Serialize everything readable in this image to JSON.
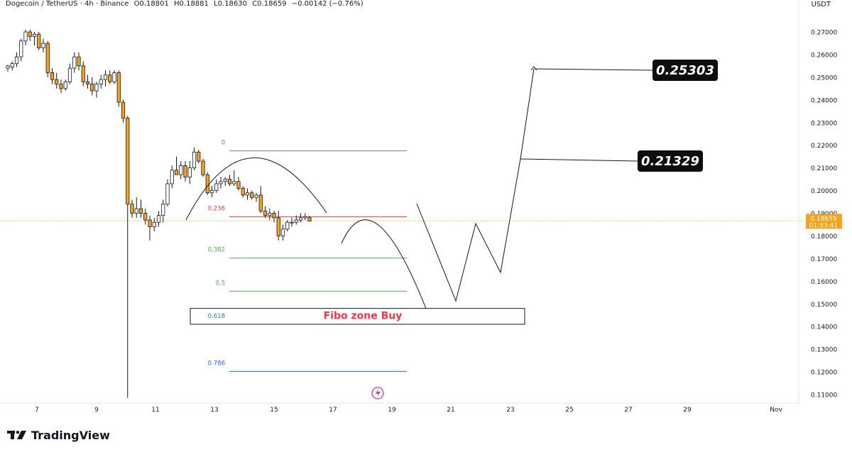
{
  "header": {
    "symbol": "Dogecoin / TetherUS · 4h · Binance",
    "open": "O0.18801",
    "high": "H0.18881",
    "low": "L0.18630",
    "close": "C0.18659",
    "change": "−0.00142 (−0.76%)"
  },
  "currency": "USDT",
  "brand": "TradingView",
  "colors": {
    "up": "#ffffff",
    "down": "#f7a21b",
    "wick": "#131722",
    "price_line": "#f7a21b",
    "fib_0": "#787b86",
    "fib_236": "#f23645",
    "fib_382": "#4caf50",
    "fib_5": "#4caf50",
    "fib_618": "#089981",
    "fib_786": "#2962ff",
    "zone_text": "#f23645"
  },
  "chart_data": {
    "type": "candlestick",
    "title": "",
    "x_axis": {
      "type": "date",
      "ticks": [
        "7",
        "9",
        "11",
        "13",
        "15",
        "17",
        "19",
        "21",
        "23",
        "25",
        "27",
        "29",
        "Nov"
      ]
    },
    "y_axis": {
      "range": [
        0.105,
        0.275
      ],
      "ticks": [
        "0.27000",
        "0.26000",
        "0.25000",
        "0.24000",
        "0.23000",
        "0.22000",
        "0.21000",
        "0.20000",
        "0.19000",
        "0.18000",
        "0.17000",
        "0.16000",
        "0.15000",
        "0.14000",
        "0.13000",
        "0.12000",
        "0.11000"
      ],
      "tick_values": [
        0.27,
        0.26,
        0.25,
        0.24,
        0.23,
        0.22,
        0.21,
        0.2,
        0.19,
        0.18,
        0.17,
        0.16,
        0.15,
        0.14,
        0.13,
        0.12,
        0.11
      ]
    },
    "last_price": {
      "value": 0.18659,
      "label": "0.18659",
      "countdown": "01:53:41"
    },
    "candles": [
      {
        "o": 0.254,
        "h": 0.2555,
        "l": 0.2525,
        "c": 0.255
      },
      {
        "o": 0.2545,
        "h": 0.257,
        "l": 0.253,
        "c": 0.256
      },
      {
        "o": 0.256,
        "h": 0.261,
        "l": 0.2545,
        "c": 0.259
      },
      {
        "o": 0.259,
        "h": 0.267,
        "l": 0.257,
        "c": 0.266
      },
      {
        "o": 0.266,
        "h": 0.271,
        "l": 0.264,
        "c": 0.27
      },
      {
        "o": 0.27,
        "h": 0.271,
        "l": 0.266,
        "c": 0.268
      },
      {
        "o": 0.268,
        "h": 0.27,
        "l": 0.264,
        "c": 0.269
      },
      {
        "o": 0.269,
        "h": 0.27,
        "l": 0.262,
        "c": 0.263
      },
      {
        "o": 0.263,
        "h": 0.267,
        "l": 0.261,
        "c": 0.265
      },
      {
        "o": 0.265,
        "h": 0.266,
        "l": 0.25,
        "c": 0.252
      },
      {
        "o": 0.252,
        "h": 0.254,
        "l": 0.247,
        "c": 0.249
      },
      {
        "o": 0.249,
        "h": 0.252,
        "l": 0.245,
        "c": 0.247
      },
      {
        "o": 0.247,
        "h": 0.249,
        "l": 0.243,
        "c": 0.245
      },
      {
        "o": 0.245,
        "h": 0.249,
        "l": 0.244,
        "c": 0.248
      },
      {
        "o": 0.248,
        "h": 0.256,
        "l": 0.247,
        "c": 0.254
      },
      {
        "o": 0.254,
        "h": 0.261,
        "l": 0.252,
        "c": 0.259
      },
      {
        "o": 0.259,
        "h": 0.261,
        "l": 0.253,
        "c": 0.255
      },
      {
        "o": 0.255,
        "h": 0.257,
        "l": 0.246,
        "c": 0.248
      },
      {
        "o": 0.248,
        "h": 0.251,
        "l": 0.245,
        "c": 0.247
      },
      {
        "o": 0.247,
        "h": 0.25,
        "l": 0.242,
        "c": 0.244
      },
      {
        "o": 0.244,
        "h": 0.248,
        "l": 0.241,
        "c": 0.247
      },
      {
        "o": 0.247,
        "h": 0.251,
        "l": 0.245,
        "c": 0.249
      },
      {
        "o": 0.249,
        "h": 0.253,
        "l": 0.246,
        "c": 0.251
      },
      {
        "o": 0.251,
        "h": 0.253,
        "l": 0.247,
        "c": 0.248
      },
      {
        "o": 0.248,
        "h": 0.253,
        "l": 0.247,
        "c": 0.252
      },
      {
        "o": 0.252,
        "h": 0.253,
        "l": 0.237,
        "c": 0.239
      },
      {
        "o": 0.239,
        "h": 0.24,
        "l": 0.23,
        "c": 0.232
      },
      {
        "o": 0.232,
        "h": 0.233,
        "l": 0.1085,
        "c": 0.194
      },
      {
        "o": 0.194,
        "h": 0.196,
        "l": 0.188,
        "c": 0.19
      },
      {
        "o": 0.19,
        "h": 0.197,
        "l": 0.188,
        "c": 0.192
      },
      {
        "o": 0.192,
        "h": 0.196,
        "l": 0.188,
        "c": 0.19
      },
      {
        "o": 0.19,
        "h": 0.192,
        "l": 0.185,
        "c": 0.187
      },
      {
        "o": 0.187,
        "h": 0.189,
        "l": 0.178,
        "c": 0.184
      },
      {
        "o": 0.184,
        "h": 0.188,
        "l": 0.182,
        "c": 0.186
      },
      {
        "o": 0.186,
        "h": 0.191,
        "l": 0.184,
        "c": 0.189
      },
      {
        "o": 0.189,
        "h": 0.196,
        "l": 0.186,
        "c": 0.194
      },
      {
        "o": 0.194,
        "h": 0.205,
        "l": 0.193,
        "c": 0.203
      },
      {
        "o": 0.203,
        "h": 0.211,
        "l": 0.201,
        "c": 0.209
      },
      {
        "o": 0.209,
        "h": 0.215,
        "l": 0.207,
        "c": 0.207
      },
      {
        "o": 0.207,
        "h": 0.213,
        "l": 0.205,
        "c": 0.211
      },
      {
        "o": 0.211,
        "h": 0.213,
        "l": 0.204,
        "c": 0.206
      },
      {
        "o": 0.206,
        "h": 0.213,
        "l": 0.203,
        "c": 0.21
      },
      {
        "o": 0.21,
        "h": 0.219,
        "l": 0.209,
        "c": 0.217
      },
      {
        "o": 0.217,
        "h": 0.218,
        "l": 0.212,
        "c": 0.213
      },
      {
        "o": 0.213,
        "h": 0.214,
        "l": 0.206,
        "c": 0.207
      },
      {
        "o": 0.207,
        "h": 0.208,
        "l": 0.198,
        "c": 0.199
      },
      {
        "o": 0.199,
        "h": 0.202,
        "l": 0.197,
        "c": 0.2
      },
      {
        "o": 0.2,
        "h": 0.205,
        "l": 0.199,
        "c": 0.203
      },
      {
        "o": 0.203,
        "h": 0.206,
        "l": 0.201,
        "c": 0.204
      },
      {
        "o": 0.204,
        "h": 0.206,
        "l": 0.202,
        "c": 0.205
      },
      {
        "o": 0.205,
        "h": 0.207,
        "l": 0.202,
        "c": 0.203
      },
      {
        "o": 0.203,
        "h": 0.209,
        "l": 0.202,
        "c": 0.204
      },
      {
        "o": 0.204,
        "h": 0.206,
        "l": 0.2,
        "c": 0.201
      },
      {
        "o": 0.201,
        "h": 0.202,
        "l": 0.197,
        "c": 0.198
      },
      {
        "o": 0.198,
        "h": 0.201,
        "l": 0.196,
        "c": 0.199
      },
      {
        "o": 0.199,
        "h": 0.2,
        "l": 0.196,
        "c": 0.197
      },
      {
        "o": 0.197,
        "h": 0.199,
        "l": 0.195,
        "c": 0.198
      },
      {
        "o": 0.198,
        "h": 0.202,
        "l": 0.19,
        "c": 0.191
      },
      {
        "o": 0.191,
        "h": 0.193,
        "l": 0.188,
        "c": 0.189
      },
      {
        "o": 0.189,
        "h": 0.192,
        "l": 0.187,
        "c": 0.19
      },
      {
        "o": 0.19,
        "h": 0.191,
        "l": 0.186,
        "c": 0.188
      },
      {
        "o": 0.188,
        "h": 0.191,
        "l": 0.178,
        "c": 0.18
      },
      {
        "o": 0.18,
        "h": 0.185,
        "l": 0.178,
        "c": 0.183
      },
      {
        "o": 0.183,
        "h": 0.187,
        "l": 0.182,
        "c": 0.186
      },
      {
        "o": 0.186,
        "h": 0.188,
        "l": 0.184,
        "c": 0.186
      },
      {
        "o": 0.186,
        "h": 0.189,
        "l": 0.185,
        "c": 0.187
      },
      {
        "o": 0.187,
        "h": 0.19,
        "l": 0.186,
        "c": 0.188
      },
      {
        "o": 0.188,
        "h": 0.19,
        "l": 0.187,
        "c": 0.1885
      },
      {
        "o": 0.18801,
        "h": 0.18881,
        "l": 0.1863,
        "c": 0.18659
      }
    ],
    "fibonacci": [
      {
        "ratio": "0",
        "price": 0.2175
      },
      {
        "ratio": "0.236",
        "price": 0.1884
      },
      {
        "ratio": "0.382",
        "price": 0.1702
      },
      {
        "ratio": "0.5",
        "price": 0.1556
      },
      {
        "ratio": "0.618",
        "price": 0.141
      },
      {
        "ratio": "0.786",
        "price": 0.1202
      }
    ],
    "annotations": {
      "zone_label": "Fibo zone Buy",
      "zone_range": [
        0.141,
        0.148
      ],
      "target1": "0.21329",
      "target2": "0.25303"
    }
  }
}
